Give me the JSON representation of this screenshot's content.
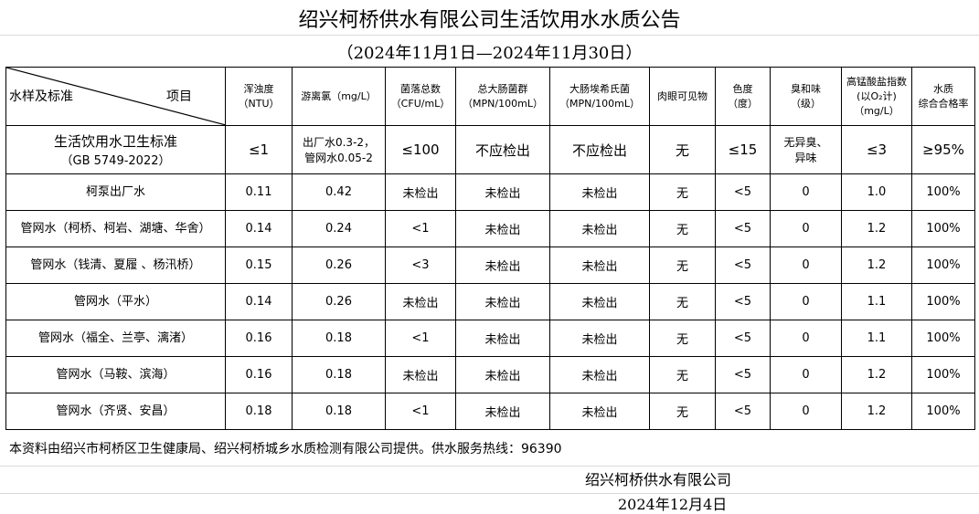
{
  "title": "绍兴柯桥供水有限公司生活饮用水水质公告",
  "subtitle": "（2024年11月1日—2024年11月30日）",
  "header": {
    "row_label": "水样及标准",
    "col_label": "项目",
    "columns": [
      "浑浊度\n（NTU）",
      "游离氯（mg/L）",
      "菌落总数\n（CFU/mL）",
      "总大肠菌群\n（MPN/100mL）",
      "大肠埃希氏菌\n（MPN/100mL）",
      "肉眼可见物",
      "色度\n（度）",
      "臭和味\n（级）",
      "高锰酸盐指数(以O₂计)\n（mg/L）",
      "水质\n综合合格率"
    ]
  },
  "standard": {
    "name": "生活饮用水卫生标准",
    "code": "（GB 5749-2022）",
    "values": [
      "≤1",
      "出厂水0.3-2，\n管网水0.05-2",
      "≤100",
      "不应检出",
      "不应检出",
      "无",
      "≤15",
      "无异臭、\n异味",
      "≤3",
      "≥95%"
    ]
  },
  "rows": [
    {
      "name": "柯泵出厂水",
      "values": [
        "0.11",
        "0.42",
        "未检出",
        "未检出",
        "未检出",
        "无",
        "<5",
        "0",
        "1.0",
        "100%"
      ]
    },
    {
      "name": "管网水（柯桥、柯岩、湖塘、华舍）",
      "values": [
        "0.14",
        "0.24",
        "<1",
        "未检出",
        "未检出",
        "无",
        "<5",
        "0",
        "1.2",
        "100%"
      ]
    },
    {
      "name": "管网水（钱清、夏履 、杨汛桥）",
      "values": [
        "0.15",
        "0.26",
        "<3",
        "未检出",
        "未检出",
        "无",
        "<5",
        "0",
        "1.2",
        "100%"
      ]
    },
    {
      "name": "管网水（平水）",
      "values": [
        "0.14",
        "0.26",
        "未检出",
        "未检出",
        "未检出",
        "无",
        "<5",
        "0",
        "1.1",
        "100%"
      ]
    },
    {
      "name": "管网水（福全、兰亭、漓渚）",
      "values": [
        "0.16",
        "0.18",
        "<1",
        "未检出",
        "未检出",
        "无",
        "<5",
        "0",
        "1.1",
        "100%"
      ]
    },
    {
      "name": "管网水（马鞍、滨海）",
      "values": [
        "0.16",
        "0.18",
        "未检出",
        "未检出",
        "未检出",
        "无",
        "<5",
        "0",
        "1.2",
        "100%"
      ]
    },
    {
      "name": "管网水（齐贤、安昌）",
      "values": [
        "0.18",
        "0.18",
        "<1",
        "未检出",
        "未检出",
        "无",
        "<5",
        "0",
        "1.2",
        "100%"
      ]
    }
  ],
  "footer": {
    "note": "本资料由绍兴市柯桥区卫生健康局、绍兴柯桥城乡水质检测有限公司提供。供水服务热线：96390",
    "company": "绍兴柯桥供水有限公司",
    "date": "2024年12月4日"
  }
}
